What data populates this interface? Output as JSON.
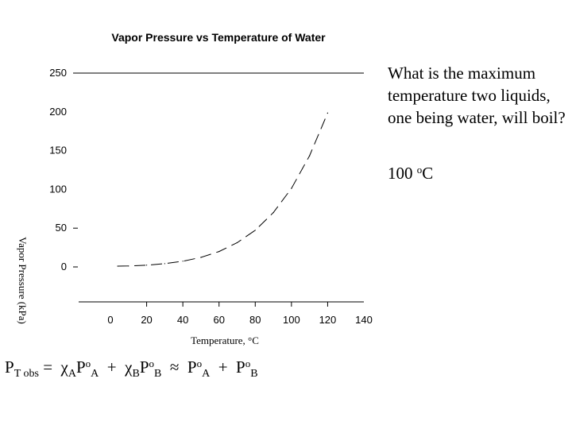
{
  "chart_data": {
    "type": "line",
    "title": "Vapor Pressure vs Temperature of Water",
    "xlabel": "Temperature, °C",
    "ylabel": "Vapor Pressure (kPa)",
    "xlim": [
      -10,
      140
    ],
    "ylim": [
      -40,
      260
    ],
    "x_ticks": [
      "0",
      "20",
      "40",
      "60",
      "80",
      "100",
      "120",
      "140"
    ],
    "y_ticks": [
      "0",
      "50",
      "100",
      "150",
      "200",
      "250"
    ],
    "reference_line": 250,
    "series": [
      {
        "style": "dashed",
        "x": [
          4,
          10,
          20,
          30,
          40,
          50,
          60,
          70,
          80,
          90,
          100,
          110,
          120
        ],
        "y": [
          1,
          1.2,
          2.3,
          4.2,
          7.4,
          12.3,
          19.9,
          31.2,
          47.3,
          70.1,
          101.3,
          143.3,
          198.5
        ]
      }
    ]
  },
  "text": {
    "question": "What is the maximum temperature two liquids, one being water, will boil?",
    "answer_value": "100",
    "answer_degree": "o",
    "answer_unit": "C"
  },
  "equation": {
    "p": "P",
    "t_obs": "T obs",
    "eq": "=",
    "chi": "χ",
    "a": "A",
    "b": "B",
    "deg": "o",
    "plus": "+",
    "approx": "≈"
  }
}
